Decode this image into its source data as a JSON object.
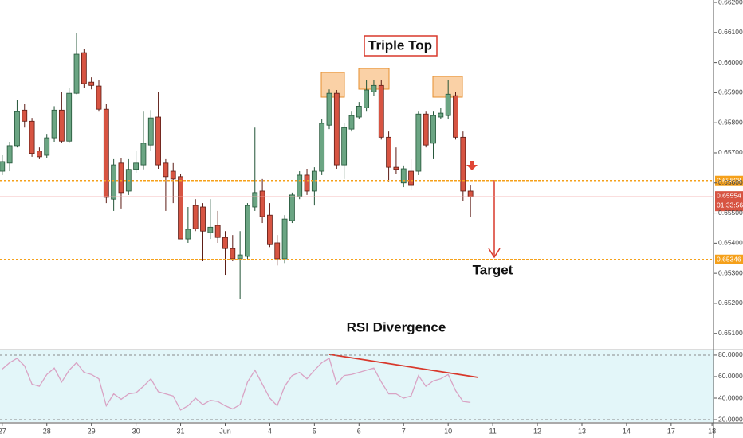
{
  "chart_data": [
    {
      "type": "candlestick",
      "up_color": "#6ba583",
      "down_color": "#d75442",
      "up_border": "#225437",
      "down_border": "#5b1a13",
      "open": [
        0.65639,
        0.65666,
        0.65724,
        0.65842,
        0.65805,
        0.65706,
        0.65692,
        0.6575,
        0.65842,
        0.65739,
        0.65898,
        0.66033,
        0.65935,
        0.65922,
        0.65845,
        0.65546,
        0.65666,
        0.65573,
        0.65645,
        0.6566,
        0.65726,
        0.65819,
        0.65666,
        0.65639,
        0.65621,
        0.65414,
        0.65525,
        0.6552,
        0.65435,
        0.65459,
        0.65419,
        0.65382,
        0.65348,
        0.65356,
        0.6552,
        0.65573,
        0.65493,
        0.65401,
        0.65348,
        0.65475,
        0.65554,
        0.65626,
        0.65573,
        0.65639,
        0.65792,
        0.65898,
        0.6566,
        0.65779,
        0.65819,
        0.6585,
        0.65903,
        0.65924,
        0.65752,
        0.65652,
        0.656,
        0.65639,
        0.65639,
        0.65829,
        0.65732,
        0.65819,
        0.65824,
        0.6589,
        0.65752,
        0.65573
      ],
      "high": [
        0.65692,
        0.65737,
        0.65877,
        0.65863,
        0.65816,
        0.65718,
        0.65763,
        0.65855,
        0.65903,
        0.65917,
        0.66097,
        0.66044,
        0.65951,
        0.65943,
        0.65863,
        0.65679,
        0.65684,
        0.65679,
        0.65706,
        0.65837,
        0.65842,
        0.65903,
        0.65679,
        0.65666,
        0.65631,
        0.6552,
        0.65546,
        0.65533,
        0.65546,
        0.65507,
        0.6544,
        0.65427,
        0.6544,
        0.65533,
        0.65784,
        0.65613,
        0.65533,
        0.65427,
        0.65493,
        0.65568,
        0.65639,
        0.65647,
        0.65652,
        0.65811,
        0.65911,
        0.65909,
        0.65798,
        0.65837,
        0.65869,
        0.65943,
        0.65943,
        0.65943,
        0.65771,
        0.65718,
        0.65658,
        0.65679,
        0.65837,
        0.65837,
        0.65837,
        0.6585,
        0.65943,
        0.65903,
        0.65771,
        0.65594
      ],
      "low": [
        0.65626,
        0.65639,
        0.65718,
        0.65784,
        0.65687,
        0.65679,
        0.65684,
        0.65737,
        0.65732,
        0.65732,
        0.65895,
        0.65917,
        0.65911,
        0.65837,
        0.65533,
        0.65507,
        0.65515,
        0.6556,
        0.65634,
        0.65645,
        0.65706,
        0.65647,
        0.65507,
        0.65533,
        0.65417,
        0.65401,
        0.6544,
        0.6534,
        0.65414,
        0.65401,
        0.65295,
        0.6534,
        0.65215,
        0.65348,
        0.65507,
        0.65467,
        0.65387,
        0.65326,
        0.65334,
        0.65467,
        0.65546,
        0.6556,
        0.65525,
        0.65626,
        0.65779,
        0.65647,
        0.65613,
        0.65771,
        0.65811,
        0.65837,
        0.6589,
        0.65744,
        0.65605,
        0.65631,
        0.65586,
        0.65578,
        0.65626,
        0.65718,
        0.65679,
        0.65811,
        0.65811,
        0.65744,
        0.65541,
        0.65488
      ],
      "close": [
        0.65671,
        0.65724,
        0.65837,
        0.65805,
        0.65698,
        0.65687,
        0.6575,
        0.65842,
        0.65739,
        0.65898,
        0.66028,
        0.6593,
        0.65924,
        0.65845,
        0.65552,
        0.6566,
        0.65568,
        0.65645,
        0.65666,
        0.65732,
        0.65816,
        0.6566,
        0.65621,
        0.65613,
        0.65414,
        0.65446,
        0.65448,
        0.6544,
        0.65453,
        0.65419,
        0.65382,
        0.65348,
        0.65361,
        0.65525,
        0.65568,
        0.65488,
        0.65395,
        0.65348,
        0.6548,
        0.6556,
        0.65626,
        0.65573,
        0.65639,
        0.65798,
        0.65898,
        0.6566,
        0.65784,
        0.65824,
        0.65855,
        0.65909,
        0.65924,
        0.65752,
        0.65652,
        0.65645,
        0.65647,
        0.65594,
        0.65829,
        0.65726,
        0.65824,
        0.65832,
        0.65895,
        0.65752,
        0.65573,
        0.65554
      ],
      "xlim": [
        -0.3,
        95.7
      ],
      "ylim": [
        0.65049,
        0.66208
      ],
      "yticks": [
        {
          "value": 0.651,
          "label": "0.65100"
        },
        {
          "value": 0.652,
          "label": "0.65200"
        },
        {
          "value": 0.653,
          "label": "0.65300"
        },
        {
          "value": 0.654,
          "label": "0.65400"
        },
        {
          "value": 0.655,
          "label": "0.65500"
        },
        {
          "value": 0.656,
          "label": "0.65600"
        },
        {
          "value": 0.657,
          "label": "0.65700"
        },
        {
          "value": 0.658,
          "label": "0.65800"
        },
        {
          "value": 0.659,
          "label": "0.65900"
        },
        {
          "value": 0.66,
          "label": "0.66000"
        },
        {
          "value": 0.661,
          "label": "0.66100"
        },
        {
          "value": 0.662,
          "label": "0.66200"
        }
      ],
      "levels": [
        0.65608,
        0.65346
      ],
      "level_color": "#f5a01a",
      "last_price": 0.65554,
      "last_color": "#d75442",
      "countdown": "01:33:56",
      "annotations": [
        "Triple Top",
        "Target",
        "RSI Divergence"
      ]
    },
    {
      "type": "line",
      "name": "RSI",
      "color": "#d9a3c4",
      "values": [
        67,
        73,
        77,
        70,
        53,
        51,
        62,
        68,
        55,
        66,
        73,
        64,
        62,
        58,
        33,
        44,
        39,
        44,
        45,
        51,
        58,
        46,
        44,
        42,
        29,
        33,
        40,
        34,
        38,
        37,
        33,
        30,
        34,
        55,
        66,
        53,
        40,
        33,
        51,
        61,
        64,
        58,
        66,
        73,
        77,
        53,
        61,
        62,
        64,
        66,
        68,
        55,
        44,
        44,
        40,
        42,
        61,
        51,
        56,
        58,
        62,
        47,
        37,
        36
      ],
      "xlim": [
        -0.3,
        95.7
      ],
      "xticks": [
        {
          "value": 0,
          "label": "27"
        },
        {
          "value": 6,
          "label": "28"
        },
        {
          "value": 12,
          "label": "29"
        },
        {
          "value": 18,
          "label": "30"
        },
        {
          "value": 24,
          "label": "31"
        },
        {
          "value": 30,
          "label": "Jun"
        },
        {
          "value": 36,
          "label": "4"
        },
        {
          "value": 42,
          "label": "5"
        },
        {
          "value": 48,
          "label": "6"
        },
        {
          "value": 54,
          "label": "7"
        },
        {
          "value": 60,
          "label": "10"
        },
        {
          "value": 66,
          "label": "11"
        },
        {
          "value": 72,
          "label": "12"
        },
        {
          "value": 78,
          "label": "13"
        },
        {
          "value": 84,
          "label": "14"
        },
        {
          "value": 90,
          "label": "17"
        },
        {
          "value": 95.5,
          "label": "18"
        }
      ],
      "ylim": [
        17.8,
        84.4
      ],
      "yticks": [
        {
          "value": 20,
          "label": "20.0000"
        },
        {
          "value": 40,
          "label": "40.0000"
        },
        {
          "value": 60,
          "label": "60.0000"
        },
        {
          "value": 80,
          "label": "80.0000"
        }
      ],
      "bands": [
        80,
        20
      ]
    }
  ]
}
